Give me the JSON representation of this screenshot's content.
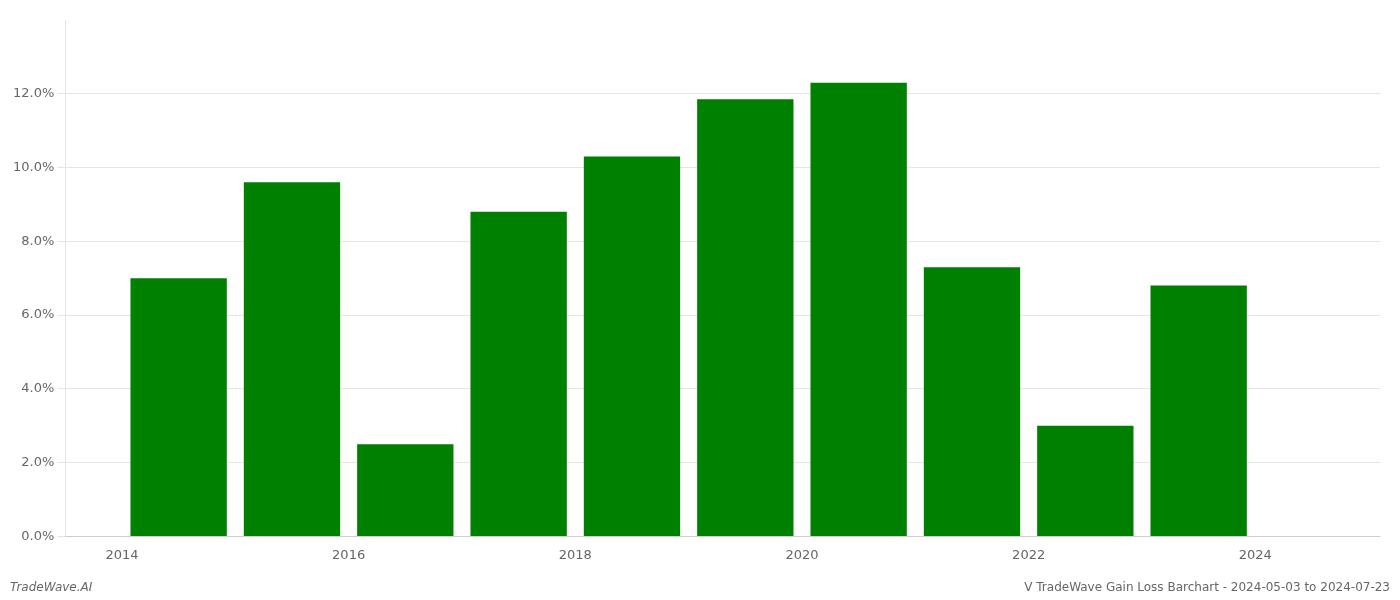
{
  "chart_data": {
    "type": "bar",
    "x": [
      2014,
      2015,
      2016,
      2017,
      2018,
      2019,
      2020,
      2021,
      2022,
      2023
    ],
    "values": [
      0.07,
      0.096,
      0.025,
      0.088,
      0.103,
      0.1185,
      0.123,
      0.073,
      0.03,
      0.068
    ],
    "color": "#008000",
    "xlim": [
      2013.0,
      2024.6
    ],
    "xticks": [
      {
        "value": 2013.5,
        "label": "2014"
      },
      {
        "value": 2015.5,
        "label": "2016"
      },
      {
        "value": 2017.5,
        "label": "2018"
      },
      {
        "value": 2019.5,
        "label": "2020"
      },
      {
        "value": 2021.5,
        "label": "2022"
      },
      {
        "value": 2023.5,
        "label": "2024"
      }
    ],
    "ylim": [
      0,
      0.14
    ],
    "yticks": [
      {
        "value": 0.0,
        "label": "0.0%"
      },
      {
        "value": 0.02,
        "label": "2.0%"
      },
      {
        "value": 0.04,
        "label": "4.0%"
      },
      {
        "value": 0.06,
        "label": "6.0%"
      },
      {
        "value": 0.08,
        "label": "8.0%"
      },
      {
        "value": 0.1,
        "label": "10.0%"
      },
      {
        "value": 0.12,
        "label": "12.0%"
      }
    ],
    "grid": true,
    "annotations": [
      "TradeWave.AI",
      "V TradeWave Gain Loss Barchart - 2024-05-03 to 2024-07-23"
    ]
  }
}
